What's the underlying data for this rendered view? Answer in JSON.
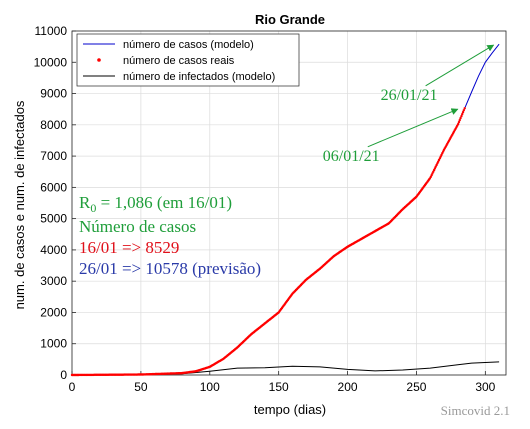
{
  "chart_data": {
    "type": "line",
    "title": "Rio Grande",
    "xlabel": "tempo (dias)",
    "ylabel": "num. de casos e num. de infectados",
    "xlim": [
      0,
      315
    ],
    "ylim": [
      0,
      11000
    ],
    "xticks": [
      0,
      50,
      100,
      150,
      200,
      250,
      300
    ],
    "yticks": [
      0,
      1000,
      2000,
      3000,
      4000,
      5000,
      6000,
      7000,
      8000,
      9000,
      10000,
      11000
    ],
    "grid": true,
    "legend_position": "top-left",
    "series": [
      {
        "name": "número de casos (modelo)",
        "color": "#0000cc",
        "style": "line",
        "x": [
          0,
          50,
          80,
          90,
          100,
          110,
          120,
          130,
          140,
          150,
          160,
          170,
          180,
          190,
          200,
          210,
          220,
          230,
          240,
          250,
          260,
          270,
          280,
          285,
          290,
          295,
          300,
          305,
          310
        ],
        "y": [
          0,
          15,
          60,
          120,
          260,
          520,
          880,
          1300,
          1650,
          2000,
          2600,
          3050,
          3400,
          3800,
          4100,
          4350,
          4600,
          4850,
          5300,
          5700,
          6300,
          7200,
          8000,
          8529,
          9050,
          9550,
          10000,
          10300,
          10578
        ]
      },
      {
        "name": "número de casos reais",
        "color": "#ff0000",
        "style": "points",
        "x": [
          0,
          50,
          80,
          90,
          100,
          110,
          120,
          130,
          140,
          150,
          160,
          170,
          180,
          190,
          200,
          210,
          220,
          230,
          240,
          250,
          260,
          270,
          280,
          285
        ],
        "y": [
          0,
          15,
          60,
          120,
          260,
          520,
          880,
          1300,
          1650,
          2000,
          2600,
          3050,
          3400,
          3800,
          4100,
          4350,
          4600,
          4850,
          5300,
          5700,
          6300,
          7200,
          8000,
          8529
        ]
      },
      {
        "name": "número de infectados (modelo)",
        "color": "#000000",
        "style": "line",
        "x": [
          0,
          50,
          80,
          100,
          120,
          140,
          160,
          180,
          200,
          220,
          240,
          260,
          280,
          290,
          300,
          310
        ],
        "y": [
          0,
          10,
          40,
          120,
          220,
          230,
          280,
          260,
          180,
          130,
          160,
          220,
          330,
          380,
          400,
          420
        ]
      }
    ],
    "annotations": [
      {
        "id": "ann_2601",
        "text": "26/01/21",
        "color": "#1f9e3a",
        "at": [
          224,
          8800
        ],
        "arrow_to": [
          306,
          10550
        ]
      },
      {
        "id": "ann_0601",
        "text": "06/01/21",
        "color": "#1f9e3a",
        "at": [
          182,
          6850
        ],
        "arrow_to": [
          280,
          8500
        ]
      }
    ]
  },
  "info": {
    "r0_prefix": "R",
    "r0_sub": "0",
    "r0_value": " = 1,086  (em 16/01)",
    "cases_heading": "Número de casos",
    "cases_actual": "16/01 => 8529",
    "cases_forecast": "26/01 => 10578 (previsão)",
    "color_green": "#1f9e3a",
    "color_red": "#e0101a",
    "color_blue": "#2a3aa8"
  },
  "watermark": "Simcovid 2.1"
}
